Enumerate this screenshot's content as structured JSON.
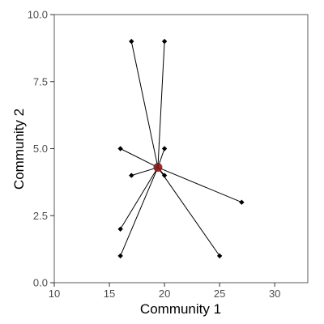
{
  "chart_data": {
    "type": "scatter",
    "title": "",
    "xlabel": "Community 1",
    "ylabel": "Community 2",
    "xlim": [
      10,
      33
    ],
    "ylim": [
      0,
      10
    ],
    "x_ticks": [
      10,
      15,
      20,
      25,
      30
    ],
    "y_ticks": [
      0.0,
      2.5,
      5.0,
      7.5,
      10.0
    ],
    "x_tick_labels": [
      "10",
      "15",
      "20",
      "25",
      "30"
    ],
    "y_tick_labels": [
      "0.0",
      "2.5",
      "5.0",
      "7.5",
      "10.0"
    ],
    "grid": false,
    "centroid": {
      "x": 19.4,
      "y": 4.3,
      "color": "#8b1a1a"
    },
    "series": [
      {
        "points": [
          {
            "x": 17,
            "y": 9
          },
          {
            "x": 20,
            "y": 9
          },
          {
            "x": 16,
            "y": 5
          },
          {
            "x": 20,
            "y": 5
          },
          {
            "x": 17,
            "y": 4
          },
          {
            "x": 20,
            "y": 4
          },
          {
            "x": 27,
            "y": 3
          },
          {
            "x": 16,
            "y": 2
          },
          {
            "x": 16,
            "y": 1
          },
          {
            "x": 25,
            "y": 1
          }
        ],
        "color": "#000000"
      }
    ]
  }
}
